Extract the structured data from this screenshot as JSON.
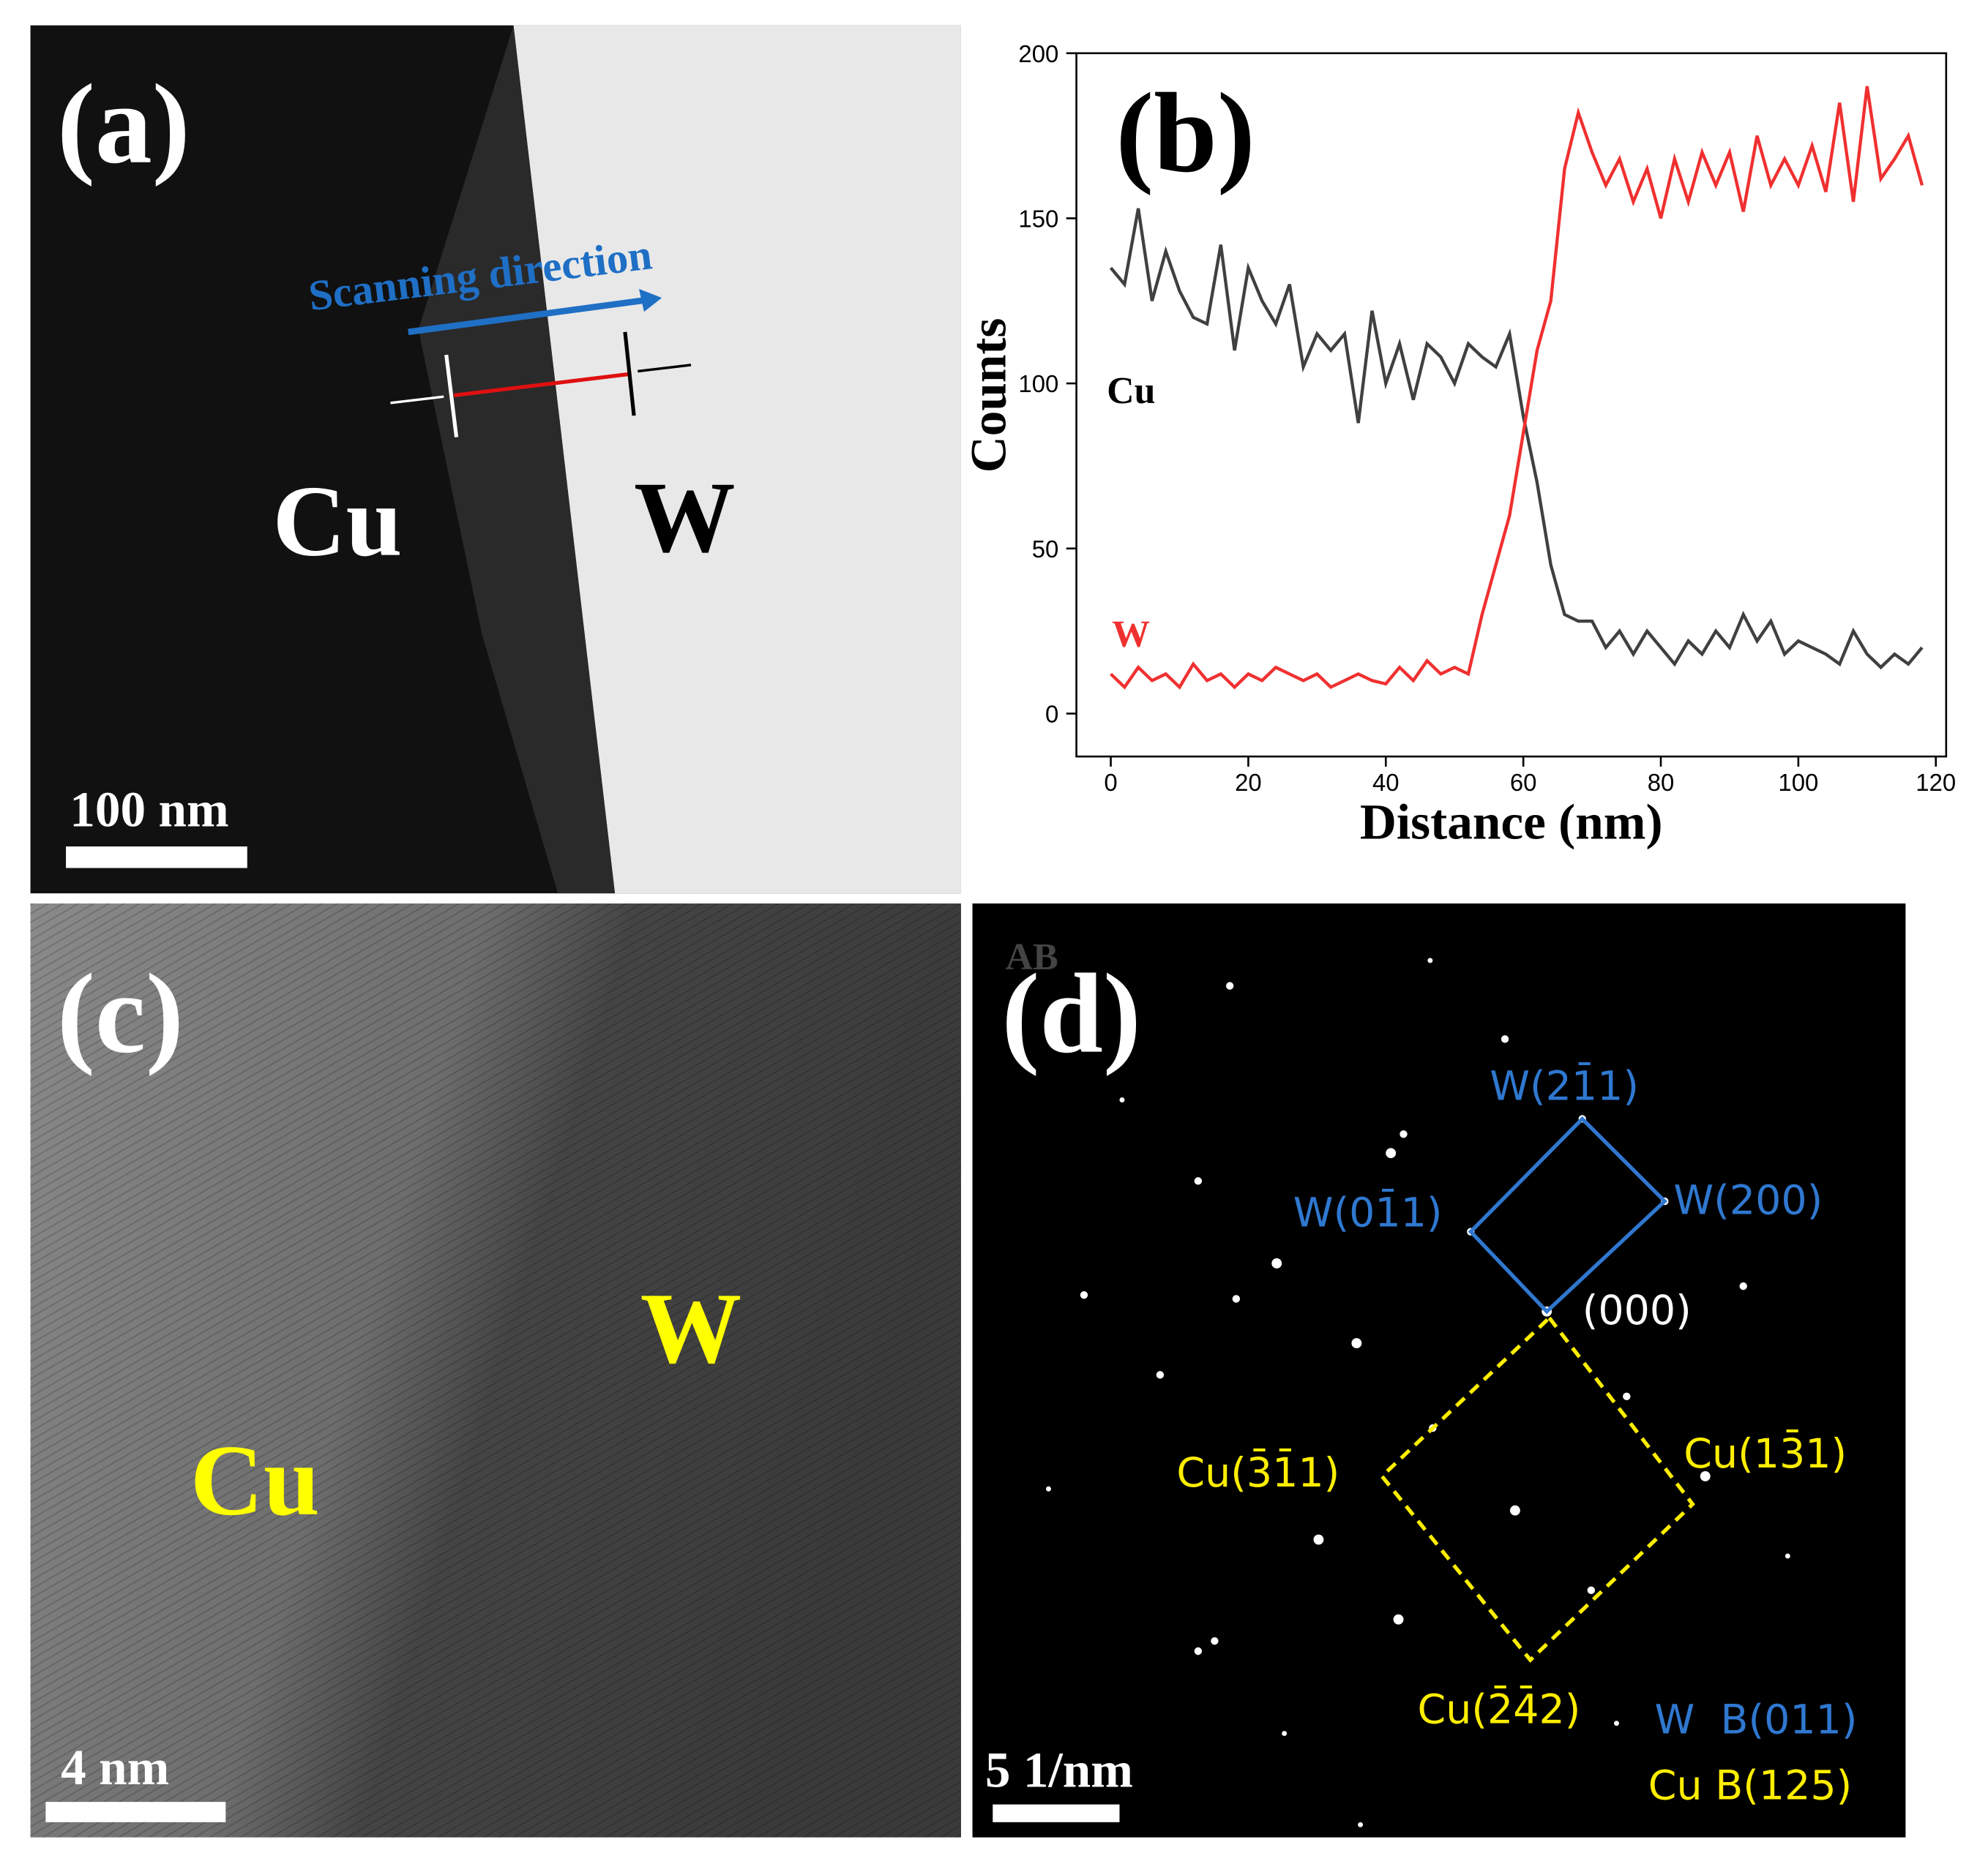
{
  "panels": {
    "a": {
      "label": "(a)",
      "direction": "Scanning direction",
      "left": "Cu",
      "right": "W",
      "scale": "100 nm"
    },
    "c": {
      "label": "(c)",
      "left": "Cu",
      "right": "W",
      "scale": "4 nm"
    },
    "d": {
      "label": "(d)",
      "corner": "AB",
      "spots": [
        "W(21̄1)",
        "W(01̄1)",
        "W(200)",
        "(000)",
        "Cu(3̄1̄1)",
        "Cu(13̄1)",
        "Cu(2̄4̄2)"
      ],
      "zone_w": "W  B(011)",
      "zone_cu": "Cu B(125)",
      "scale": "5 1/nm"
    }
  },
  "chart_data": {
    "type": "line",
    "label": "(b)",
    "xlabel": "Distance (nm)",
    "ylabel": "Counts",
    "x": [
      0,
      2,
      4,
      6,
      8,
      10,
      12,
      14,
      16,
      18,
      20,
      22,
      24,
      26,
      28,
      30,
      32,
      34,
      36,
      38,
      40,
      42,
      44,
      46,
      48,
      50,
      52,
      54,
      56,
      58,
      60,
      62,
      64,
      66,
      68,
      70,
      72,
      74,
      76,
      78,
      80,
      82,
      84,
      86,
      88,
      90,
      92,
      94,
      96,
      98,
      100,
      102,
      104,
      106,
      108,
      110,
      112,
      114,
      116,
      118
    ],
    "series": [
      {
        "name": "Cu",
        "color": "#404040",
        "values": [
          135,
          130,
          153,
          125,
          140,
          128,
          120,
          118,
          142,
          110,
          135,
          125,
          118,
          130,
          105,
          115,
          110,
          115,
          88,
          122,
          100,
          112,
          95,
          112,
          108,
          100,
          112,
          108,
          105,
          115,
          90,
          70,
          45,
          30,
          28,
          28,
          20,
          25,
          18,
          25,
          20,
          15,
          22,
          18,
          25,
          20,
          30,
          22,
          28,
          18,
          22,
          20,
          18,
          15,
          25,
          18,
          14,
          18,
          15,
          20
        ]
      },
      {
        "name": "W",
        "color": "#f03030",
        "values": [
          12,
          8,
          14,
          10,
          12,
          8,
          15,
          10,
          12,
          8,
          12,
          10,
          14,
          12,
          10,
          12,
          8,
          10,
          12,
          10,
          9,
          14,
          10,
          16,
          12,
          14,
          12,
          30,
          45,
          60,
          85,
          110,
          125,
          165,
          182,
          170,
          160,
          168,
          155,
          165,
          150,
          168,
          155,
          170,
          160,
          170,
          152,
          175,
          160,
          168,
          160,
          172,
          158,
          185,
          155,
          190,
          162,
          168,
          175,
          160
        ]
      }
    ],
    "xlim": [
      -5,
      121.5
    ],
    "ylim": [
      -13,
      200
    ],
    "xticks": [
      0,
      20,
      40,
      60,
      80,
      100,
      120
    ],
    "yticks": [
      0,
      50,
      100,
      150,
      200
    ]
  }
}
